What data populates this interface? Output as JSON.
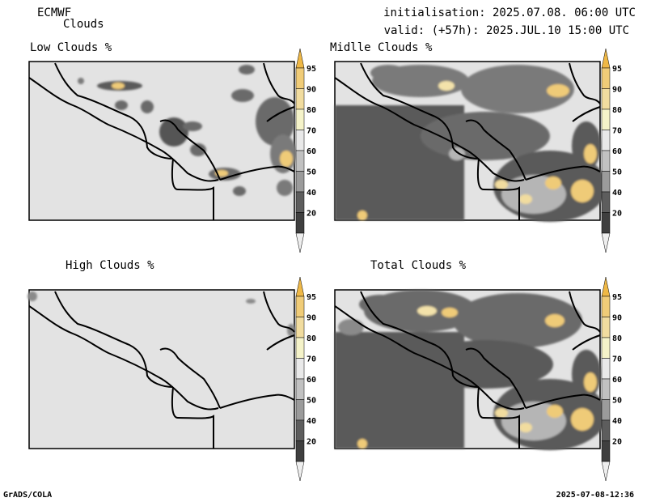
{
  "header": {
    "model": "ECMWF",
    "product": "Clouds",
    "init": "initialisation: 2025.07.08. 06:00 UTC",
    "valid": "valid: (+57h): 2025.JUL.10 15:00 UTC"
  },
  "panels": [
    {
      "title": "Low Clouds %"
    },
    {
      "title": "Midlle Clouds %"
    },
    {
      "title": "High Clouds %"
    },
    {
      "title": "Total Clouds %"
    }
  ],
  "colorbar": {
    "levels": [
      "95",
      "90",
      "80",
      "70",
      "60",
      "50",
      "40",
      "20"
    ],
    "colors": [
      "#efb846",
      "#f0cc78",
      "#f1dc9f",
      "#f5f3c9",
      "#e9e9e9",
      "#c1c1c1",
      "#9b9b9b",
      "#5d5d5d",
      "#3f3f3f",
      "#eeeeee"
    ]
  },
  "footer": {
    "left": "GrADS/COLA",
    "right": "2025-07-08-12:36"
  }
}
